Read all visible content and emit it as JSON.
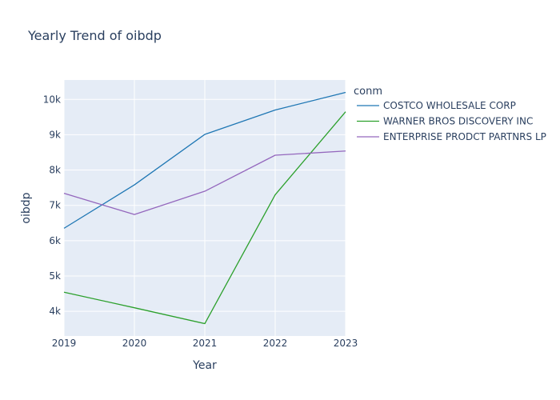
{
  "chart_data": {
    "type": "line",
    "title": "Yearly Trend of oibdp",
    "xlabel": "Year",
    "ylabel": "oibdp",
    "x": [
      2019,
      2020,
      2021,
      2022,
      2023
    ],
    "xticks": [
      "2019",
      "2020",
      "2021",
      "2022",
      "2023"
    ],
    "yticks": [
      {
        "value": 4000,
        "label": "4k"
      },
      {
        "value": 5000,
        "label": "5k"
      },
      {
        "value": 6000,
        "label": "6k"
      },
      {
        "value": 7000,
        "label": "7k"
      },
      {
        "value": 8000,
        "label": "8k"
      },
      {
        "value": 9000,
        "label": "9k"
      },
      {
        "value": 10000,
        "label": "10k"
      }
    ],
    "xlim": [
      2019,
      2023
    ],
    "ylim": [
      3300,
      10550
    ],
    "grid": true,
    "legend": {
      "title": "conm",
      "position": "right"
    },
    "series": [
      {
        "name": "COSTCO WHOLESALE CORP",
        "color": "#1f77b4",
        "values": [
          6350,
          7580,
          9010,
          9700,
          10200
        ]
      },
      {
        "name": "WARNER BROS DISCOVERY INC",
        "color": "#2ca02c",
        "values": [
          4540,
          4100,
          3650,
          7300,
          9650
        ]
      },
      {
        "name": "ENTERPRISE PRODCT PARTNRS LP",
        "color": "#9467bd",
        "values": [
          7340,
          6740,
          7400,
          8420,
          8540
        ]
      }
    ]
  }
}
